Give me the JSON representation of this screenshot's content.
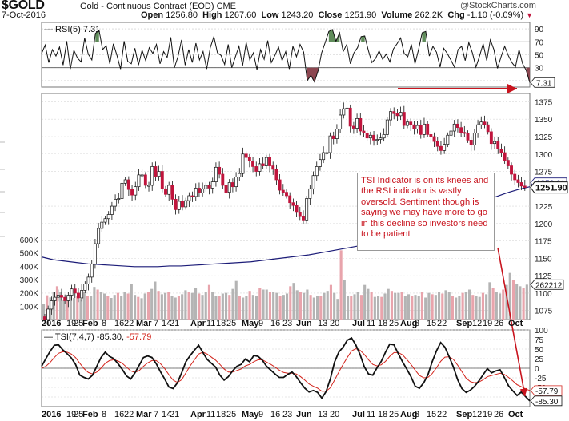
{
  "header": {
    "symbol": "$GOLD",
    "name": "Gold - Continuous Contract (EOD)",
    "exchange": "CME",
    "watermark": "@StockCharts.com",
    "date": "7-Oct-2016",
    "open_label": "Open",
    "open": "1256.80",
    "high_label": "High",
    "high": "1267.60",
    "low_label": "Low",
    "low": "1243.20",
    "close_label": "Close",
    "close": "1251.90",
    "volume_label": "Volume",
    "volume": "262.2K",
    "chg_label": "Chg",
    "chg": "-1.10 (-0.09%)"
  },
  "annotation": "TSI Indicator is on its knees and the RSI indicator is vastly oversold. Sentiment though is saying we may have more to go in this decline so investors need to be patient",
  "colors": {
    "up": "#111111",
    "down": "#c0143c",
    "ma": "#1c1c78",
    "annotation": "#c8141e",
    "overbought": "#5f8c5a",
    "oversold": "#8c4650",
    "volume_up": "#b4b4b4",
    "volume_down": "#e8a4ac"
  },
  "chart_data": [
    {
      "type": "line",
      "panel": "RSI",
      "legend": "RSI(5) 7.31",
      "current_label": "7.31",
      "ylim": [
        0,
        100
      ],
      "y_ticks": [
        90,
        70,
        50,
        30,
        10
      ],
      "reference_lines": [
        70,
        30
      ],
      "y": [
        52,
        65,
        38,
        58,
        48,
        62,
        34,
        71,
        28,
        57,
        45,
        39,
        76,
        51,
        42,
        83,
        88,
        58,
        64,
        36,
        67,
        49,
        28,
        71,
        40,
        36,
        60,
        34,
        57,
        41,
        61,
        52,
        66,
        36,
        55,
        46,
        77,
        30,
        47,
        73,
        34,
        58,
        38,
        68,
        42,
        55,
        28,
        61,
        78,
        53,
        49,
        35,
        66,
        30,
        47,
        63,
        33,
        69,
        42,
        53,
        27,
        58,
        43,
        72,
        38,
        49,
        62,
        41,
        55,
        28,
        63,
        47,
        66,
        54,
        10,
        18,
        8,
        25,
        53,
        69,
        86,
        89,
        71,
        84,
        55,
        66,
        36,
        53,
        61,
        78,
        79,
        57,
        38,
        44,
        56,
        43,
        51,
        39,
        59,
        67,
        76,
        52,
        47,
        66,
        36,
        58,
        84,
        86,
        48,
        63,
        54,
        31,
        60,
        52,
        42,
        31,
        58,
        63,
        41,
        69,
        53,
        31,
        48,
        67,
        41,
        73,
        58,
        29,
        47,
        63,
        49,
        38,
        31,
        58,
        36,
        26,
        7
      ]
    },
    {
      "type": "candlestick",
      "panel": "price",
      "ylim": [
        1062,
        1387
      ],
      "y_ticks": [
        1375,
        1350,
        1325,
        1300,
        1275,
        1250,
        1225,
        1200,
        1175,
        1150,
        1125,
        1100,
        1075
      ],
      "price_label": "1251.90",
      "ma_label": "1252.61",
      "x_tick_labels": [
        "2016",
        "19",
        "25",
        "Feb",
        "8",
        "16",
        "22",
        "Mar",
        "7",
        "14",
        "21",
        "Apr",
        "11",
        "18",
        "25",
        "May",
        "9",
        "16",
        "23",
        "Jun",
        "13",
        "20",
        "Jul",
        "11",
        "18",
        "25",
        "Aug",
        "8",
        "15",
        "22",
        "Sep",
        "12",
        "19",
        "26",
        "Oct"
      ],
      "closes": [
        1062,
        1077,
        1089,
        1094,
        1097,
        1094,
        1089,
        1097,
        1106,
        1100,
        1093,
        1104,
        1113,
        1123,
        1142,
        1171,
        1193,
        1202,
        1207,
        1213,
        1225,
        1235,
        1236,
        1258,
        1263,
        1249,
        1241,
        1253,
        1270,
        1270,
        1255,
        1255,
        1282,
        1268,
        1275,
        1250,
        1242,
        1255,
        1235,
        1220,
        1232,
        1224,
        1233,
        1240,
        1239,
        1251,
        1244,
        1250,
        1255,
        1251,
        1260,
        1281,
        1271,
        1255,
        1245,
        1259,
        1253,
        1267,
        1272,
        1300,
        1295,
        1290,
        1282,
        1275,
        1286,
        1283,
        1295,
        1283,
        1278,
        1263,
        1248,
        1245,
        1240,
        1230,
        1226,
        1216,
        1210,
        1204,
        1236,
        1250,
        1269,
        1282,
        1292,
        1302,
        1302,
        1326,
        1322,
        1336,
        1356,
        1365,
        1366,
        1340,
        1337,
        1351,
        1333,
        1330,
        1323,
        1327,
        1320,
        1321,
        1323,
        1328,
        1349,
        1361,
        1358,
        1355,
        1360,
        1341,
        1346,
        1342,
        1336,
        1341,
        1328,
        1343,
        1328,
        1325,
        1318,
        1311,
        1305,
        1314,
        1327,
        1333,
        1343,
        1338,
        1331,
        1330,
        1320,
        1313,
        1330,
        1342,
        1346,
        1342,
        1332,
        1315,
        1318,
        1307,
        1302,
        1291,
        1283,
        1271,
        1263,
        1259,
        1254,
        1252
      ],
      "ma_y": [
        1152,
        1148,
        1146,
        1144,
        1142,
        1141,
        1140,
        1139,
        1138,
        1138,
        1138,
        1139,
        1139,
        1140,
        1141,
        1142,
        1143,
        1144,
        1145,
        1147,
        1149,
        1151,
        1153,
        1155,
        1158,
        1161,
        1164,
        1167,
        1170,
        1174,
        1178,
        1183,
        1189,
        1195,
        1202,
        1209,
        1217,
        1224,
        1232,
        1238,
        1244,
        1249,
        1253
      ],
      "annotation_arrow_targets": [
        "rsi_last",
        "tsi_last"
      ]
    },
    {
      "type": "bar",
      "panel": "volume",
      "ylim": [
        0,
        600
      ],
      "y_ticks_label": [
        "600K",
        "500K",
        "400K",
        "300K",
        "200K",
        "100K"
      ],
      "y_ticks": [
        600,
        500,
        400,
        300,
        200,
        100
      ],
      "current_label": "262212",
      "values": [
        120,
        182,
        166,
        210,
        250,
        205,
        150,
        170,
        195,
        162,
        175,
        155,
        210,
        180,
        175,
        245,
        225,
        205,
        195,
        175,
        162,
        185,
        200,
        175,
        210,
        195,
        270,
        185,
        170,
        160,
        195,
        205,
        230,
        285,
        215,
        190,
        200,
        205,
        180,
        165,
        175,
        190,
        220,
        210,
        200,
        240,
        195,
        185,
        210,
        260,
        205,
        180,
        175,
        195,
        200,
        185,
        230,
        290,
        180,
        165,
        175,
        215,
        185,
        175,
        240,
        225,
        225,
        205,
        210,
        200,
        180,
        185,
        195,
        250,
        275,
        220,
        210,
        200,
        225,
        185,
        165,
        175,
        180,
        200,
        215,
        260,
        200,
        155,
        520,
        300,
        180,
        175,
        190,
        205,
        185,
        260,
        230,
        205,
        170,
        175,
        170,
        195,
        230,
        215,
        200,
        200,
        205,
        175,
        190,
        180,
        185,
        175,
        205,
        165,
        200,
        190,
        185,
        210,
        195,
        220,
        210,
        175,
        165,
        180,
        200,
        205,
        225,
        185,
        175,
        170,
        200,
        190,
        280,
        235,
        205,
        195,
        225,
        260,
        350,
        295,
        270,
        250,
        240,
        262
      ]
    },
    {
      "type": "line",
      "panel": "TSI",
      "legend_prefix": "TSI(7,4,7) -85.30,",
      "legend_signal": "-57.79",
      "tsi_label": "-85.30",
      "signal_label": "-57.79",
      "ylim": [
        -100,
        100
      ],
      "y_ticks": [
        100,
        75,
        50,
        25,
        0,
        -25,
        -50,
        -75
      ],
      "series": [
        {
          "name": "TSI(7,4,7)",
          "values": [
            5,
            25,
            44,
            60,
            61,
            48,
            38,
            27,
            10,
            -18,
            -24,
            -28,
            -18,
            5,
            28,
            42,
            31,
            25,
            12,
            -3,
            -20,
            -28,
            -12,
            8,
            28,
            32,
            28,
            12,
            -9,
            -28,
            -49,
            -53,
            -38,
            -12,
            17,
            33,
            47,
            60,
            41,
            23,
            13,
            3,
            -18,
            -31,
            -22,
            -7,
            5,
            10,
            24,
            17,
            33,
            31,
            21,
            5,
            -5,
            -15,
            -24,
            -24,
            -16,
            -10,
            -22,
            -38,
            -52,
            -62,
            -58,
            -63,
            -78,
            -61,
            -28,
            16,
            42,
            55,
            73,
            79,
            61,
            36,
            4,
            -15,
            -18,
            1,
            18,
            42,
            63,
            61,
            38,
            17,
            -2,
            -22,
            -47,
            -52,
            -38,
            -17,
            17,
            45,
            67,
            55,
            30,
            3,
            -30,
            -53,
            -63,
            -57,
            -47,
            -33,
            -17,
            -1,
            -12,
            -7,
            -4,
            -24,
            -46,
            -59,
            -71,
            -62,
            -74,
            -85
          ]
        },
        {
          "name": "Signal",
          "values": [
            0,
            5,
            15,
            28,
            39,
            43,
            42,
            37,
            28,
            13,
            -1,
            -11,
            -15,
            -10,
            0,
            13,
            20,
            22,
            19,
            13,
            3,
            -7,
            -11,
            -6,
            5,
            14,
            20,
            20,
            12,
            -1,
            -17,
            -31,
            -37,
            -30,
            -12,
            6,
            22,
            37,
            42,
            37,
            29,
            21,
            10,
            -2,
            -10,
            -10,
            -6,
            -2,
            6,
            10,
            17,
            22,
            22,
            16,
            10,
            3,
            -5,
            -11,
            -13,
            -13,
            -15,
            -22,
            -31,
            -41,
            -47,
            -52,
            -60,
            -60,
            -51,
            -31,
            -10,
            10,
            28,
            45,
            51,
            47,
            36,
            22,
            10,
            6,
            9,
            18,
            31,
            41,
            41,
            35,
            23,
            10,
            -5,
            -19,
            -25,
            -24,
            -14,
            1,
            18,
            29,
            30,
            23,
            8,
            -9,
            -26,
            -35,
            -38,
            -36,
            -30,
            -22,
            -19,
            -16,
            -13,
            -16,
            -24,
            -33,
            -43,
            -48,
            -54,
            -58
          ]
        }
      ]
    }
  ]
}
